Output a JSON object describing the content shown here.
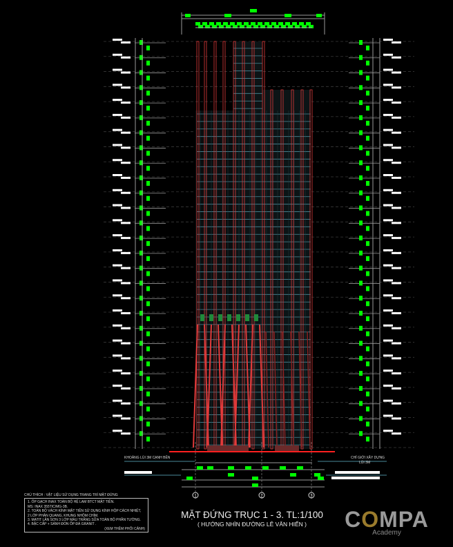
{
  "drawing": {
    "title": "MẶT ĐỨNG TRỤC 1 - 3. TL:1/100",
    "subtitle": "( HƯỚNG NHÌN ĐƯỜNG LÊ VĂN HIẾN )",
    "setback_left_label": "KHOẢNG LÙI 3M CẠNH BÊN",
    "setback_right_label": "CHỈ GIỚI XÂY DỰNG",
    "setback_right_label2": "LÙI 3M",
    "grid_axes": [
      "1",
      "2",
      "3"
    ],
    "floor_count": 27
  },
  "notes": {
    "heading": "CHÚ THÍCH : VẬT LIỆU SỬ DỤNG TRANG TRÍ MẶT ĐỨNG",
    "items": [
      "1. ỐP GẠCH INAX TOÀN BỘ HỆ LAM BTCT MẶT TIỀN.",
      "    MS: INAX 355TIC/MG-3B.",
      "2. TOÀN BỘ VÁCH KÍNH MẶT TIỀN SỬ DỤNG KÍNH HỘP CÁCH NHIỆT,",
      "    2 LỚP PHẢN QUANG, KHUNG NHÔM CHÌM.",
      "3. MATIT LĂN SƠN 3 LỚP MÀU TRẮNG SỮA TOÀN BỘ PHẦN TƯỜNG.",
      "4. BẬC CẤP + SẢNH ĐÓN ỐP ĐÁ GRANIT ."
    ],
    "see_also": "(XEM THÊM PHỐI CẢNH)"
  },
  "logo": {
    "text_pre": "C",
    "text_o": "O",
    "text_post": "MPA",
    "sub": "Academy"
  },
  "colors": {
    "background": "#000000",
    "column": "#e23a3a",
    "glass": "#4a8a9a",
    "dimension": "#00ff00",
    "line": "#9a9a9a",
    "ground": "#ff2020",
    "logo_gray": "#9a9a9a",
    "logo_gold": "#9a7b2c"
  }
}
